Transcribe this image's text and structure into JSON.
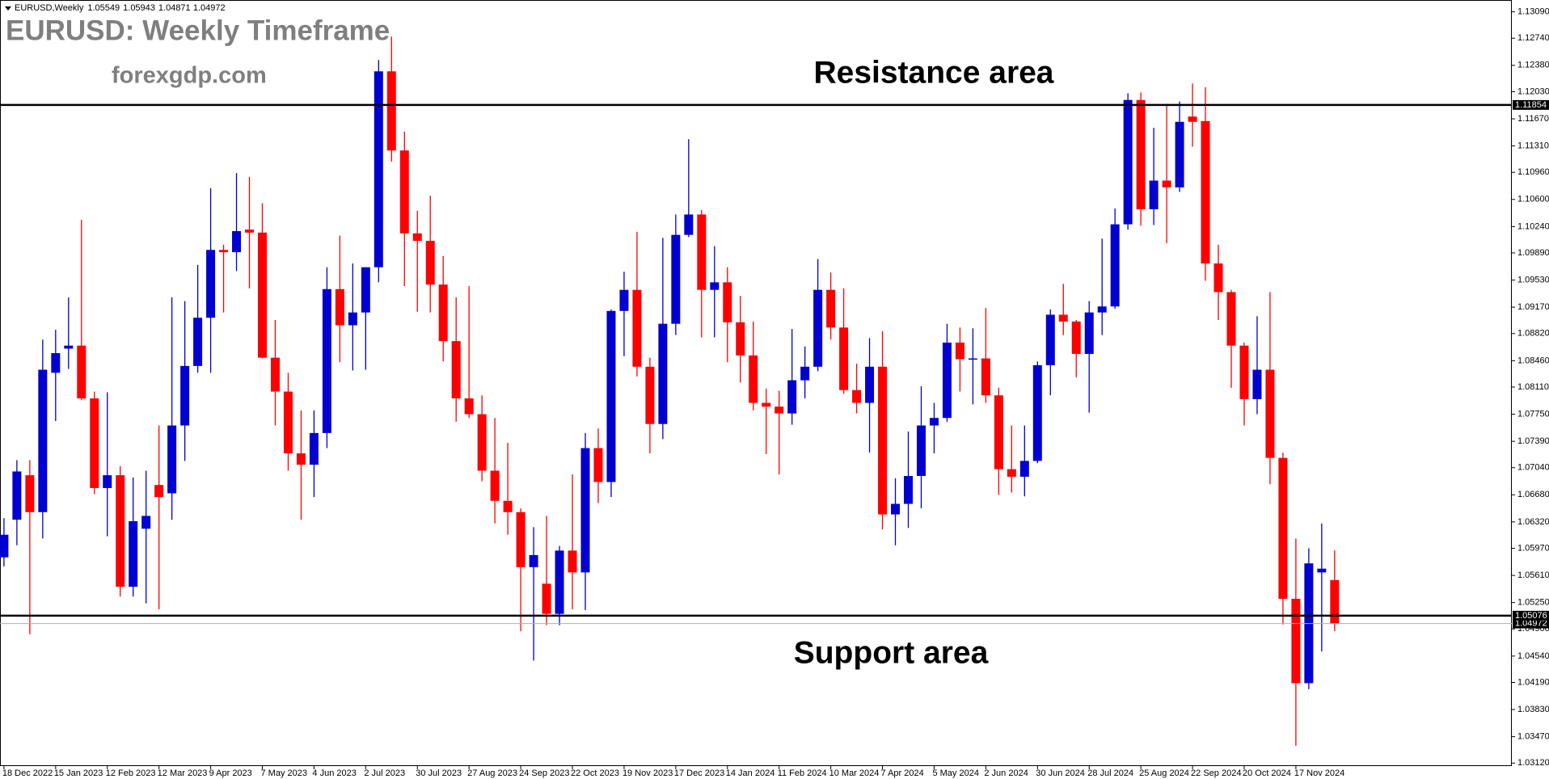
{
  "chart_data": {
    "type": "candlestick",
    "symbol": "EURUSD,Weekly",
    "title": "EURUSD: Weekly Timeframe",
    "subtitle": "forexgdp.com",
    "annotations": [
      "Resistance area",
      "Support area"
    ],
    "up_color": "#0000d0",
    "down_color": "#ff0000",
    "categories": [
      "18 Dec 2022",
      null,
      null,
      null,
      "15 Jan 2023",
      null,
      null,
      null,
      "12 Feb 2023",
      null,
      null,
      null,
      "12 Mar 2023",
      null,
      null,
      null,
      "9 Apr 2023",
      null,
      null,
      null,
      "7 May 2023",
      null,
      null,
      null,
      "4 Jun 2023",
      null,
      null,
      null,
      "2 Jul 2023",
      null,
      null,
      null,
      "30 Jul 2023",
      null,
      null,
      null,
      "27 Aug 2023",
      null,
      null,
      null,
      "24 Sep 2023",
      null,
      null,
      null,
      "22 Oct 2023",
      null,
      null,
      null,
      "19 Nov 2023",
      null,
      null,
      null,
      "17 Dec 2023",
      null,
      null,
      null,
      "14 Jan 2024",
      null,
      null,
      null,
      "11 Feb 2024",
      null,
      null,
      null,
      "10 Mar 2024",
      null,
      null,
      null,
      "7 Apr 2024",
      null,
      null,
      null,
      "5 May 2024",
      null,
      null,
      null,
      "2 Jun 2024",
      null,
      null,
      null,
      "30 Jun 2024",
      null,
      null,
      null,
      "28 Jul 2024",
      null,
      null,
      null,
      "25 Aug 2024",
      null,
      null,
      null,
      "22 Sep 2024",
      null,
      null,
      null,
      "20 Oct 2024",
      null,
      null,
      null,
      "17 Nov 2024",
      null,
      null,
      null
    ],
    "open": [
      1.0585,
      1.0635,
      1.0694,
      1.0645,
      1.083,
      1.0862,
      1.0866,
      1.0796,
      1.0677,
      1.0694,
      1.0546,
      1.0623,
      1.0681,
      1.067,
      1.076,
      1.0839,
      1.0903,
      1.0993,
      1.099,
      1.102,
      1.1016,
      1.085,
      1.0805,
      1.0723,
      1.0708,
      1.075,
      1.0941,
      1.0893,
      1.091,
      1.097,
      1.123,
      1.1125,
      1.1015,
      1.1005,
      1.0947,
      1.0872,
      1.0796,
      1.0775,
      1.07,
      1.066,
      1.0645,
      1.0572,
      1.055,
      1.051,
      1.0594,
      1.0565,
      1.073,
      1.0685,
      1.0912,
      1.094,
      1.0838,
      1.0762,
      1.0895,
      1.1013,
      1.104,
      1.094,
      1.095,
      1.0897,
      1.0853,
      1.079,
      1.0785,
      1.0776,
      1.082,
      1.0838,
      1.094,
      1.089,
      1.0807,
      1.079,
      1.0838,
      1.0642,
      1.0656,
      1.0693,
      1.076,
      1.077,
      1.087,
      1.0848,
      1.0849,
      1.08,
      1.0702,
      1.0692,
      1.0713,
      1.084,
      1.0907,
      1.0898,
      1.0855,
      1.091,
      1.0918,
      1.1027,
      1.1192,
      1.1047,
      1.1085,
      1.1076,
      1.117,
      1.1164,
      1.0975,
      1.0937,
      1.0866,
      1.0795,
      1.0834,
      1.0717,
      1.053,
      1.0418,
      1.0565,
      1.05549
    ],
    "high": [
      1.0637,
      1.0714,
      1.0714,
      1.0874,
      1.0887,
      1.093,
      1.1033,
      1.0805,
      1.0804,
      1.0706,
      1.0691,
      1.07,
      1.076,
      1.093,
      1.0925,
      1.0973,
      1.1075,
      1.1,
      1.1095,
      1.109,
      1.1055,
      1.09,
      1.083,
      1.078,
      1.078,
      1.097,
      1.1012,
      1.0975,
      1.097,
      1.1245,
      1.1276,
      1.115,
      1.1045,
      1.1065,
      1.0985,
      1.093,
      1.0945,
      1.08,
      1.077,
      1.0737,
      1.065,
      1.0625,
      1.064,
      1.06,
      1.0695,
      1.075,
      1.0756,
      1.0914,
      1.0964,
      1.1017,
      1.085,
      1.1009,
      1.104,
      1.114,
      1.1046,
      1.0998,
      1.097,
      1.0932,
      1.0898,
      1.0809,
      1.0806,
      1.0888,
      1.0865,
      1.0981,
      1.0963,
      1.0942,
      1.0842,
      1.0876,
      1.0885,
      1.069,
      1.0752,
      1.0812,
      1.079,
      1.0895,
      1.089,
      1.0889,
      1.0916,
      1.081,
      1.076,
      1.076,
      1.0845,
      1.0914,
      1.0948,
      1.09,
      1.0925,
      1.1008,
      1.1048,
      1.1201,
      1.1202,
      1.1155,
      1.1187,
      1.119,
      1.1214,
      1.1209,
      1.1,
      1.094,
      1.087,
      1.0905,
      1.0937,
      1.0724,
      1.061,
      1.0597,
      1.063,
      1.05943
    ],
    "low": [
      1.0573,
      1.0601,
      1.0483,
      1.061,
      1.0766,
      1.0835,
      1.0794,
      1.0669,
      1.0613,
      1.0533,
      1.0533,
      1.0524,
      1.0516,
      1.0635,
      1.0713,
      1.083,
      1.083,
      1.091,
      1.0965,
      1.0942,
      1.0849,
      1.076,
      1.07,
      1.0635,
      1.0665,
      1.073,
      1.0844,
      1.0833,
      1.0834,
      1.095,
      1.111,
      1.0945,
      1.0911,
      1.091,
      1.0845,
      1.0765,
      1.077,
      1.0686,
      1.063,
      1.0615,
      1.0487,
      1.0448,
      1.0495,
      1.0495,
      1.0516,
      1.0515,
      1.0657,
      1.0665,
      1.0852,
      1.0825,
      1.0723,
      1.0742,
      1.088,
      1.101,
      1.0877,
      1.0877,
      1.0844,
      1.0817,
      1.078,
      1.0722,
      1.0695,
      1.0761,
      1.0796,
      1.0832,
      1.0874,
      1.0802,
      1.0776,
      1.0724,
      1.0622,
      1.0601,
      1.0624,
      1.065,
      1.0723,
      1.0765,
      1.0805,
      1.0788,
      1.079,
      1.0668,
      1.0671,
      1.0666,
      1.071,
      1.08,
      1.088,
      1.0824,
      1.0777,
      1.088,
      1.0915,
      1.102,
      1.1025,
      1.1026,
      1.1002,
      1.107,
      1.113,
      1.0952,
      1.09,
      1.081,
      1.076,
      1.0775,
      1.0682,
      1.0496,
      1.0335,
      1.041,
      1.046,
      1.04871
    ],
    "close": [
      1.0615,
      1.0699,
      1.0645,
      1.0834,
      1.0856,
      1.0866,
      1.0796,
      1.0677,
      1.0694,
      1.0546,
      1.0633,
      1.064,
      1.0665,
      1.076,
      1.0839,
      1.0903,
      1.0993,
      1.099,
      1.1018,
      1.1016,
      1.085,
      1.0805,
      1.0723,
      1.0708,
      1.075,
      1.0941,
      1.0893,
      1.091,
      1.097,
      1.123,
      1.1125,
      1.1015,
      1.1005,
      1.0947,
      1.0872,
      1.0796,
      1.0775,
      1.07,
      1.066,
      1.0645,
      1.0572,
      1.0588,
      1.051,
      1.0594,
      1.0565,
      1.073,
      1.0685,
      1.0912,
      1.094,
      1.0838,
      1.0762,
      1.0895,
      1.1013,
      1.104,
      1.094,
      1.095,
      1.0897,
      1.0853,
      1.079,
      1.0785,
      1.0776,
      1.082,
      1.0838,
      1.094,
      1.089,
      1.0807,
      1.079,
      1.0838,
      1.0642,
      1.0656,
      1.0693,
      1.076,
      1.077,
      1.087,
      1.0848,
      1.0849,
      1.08,
      1.0702,
      1.0692,
      1.0713,
      1.084,
      1.0907,
      1.0898,
      1.0855,
      1.091,
      1.0918,
      1.1027,
      1.1192,
      1.1047,
      1.1085,
      1.1076,
      1.1163,
      1.1163,
      1.0975,
      1.0937,
      1.0866,
      1.0795,
      1.0834,
      1.0717,
      1.053,
      1.0418,
      1.0577,
      1.057,
      1.04972
    ],
    "levels": [
      {
        "value": 1.11854,
        "label": "1.11854"
      },
      {
        "value": 1.05076,
        "label": "1.05076"
      }
    ],
    "ylim": [
      1.0308,
      1.1322
    ],
    "yticks": [
      {
        "value": 1.1309,
        "label": "1.13090"
      },
      {
        "value": 1.1274,
        "label": "1.12740"
      },
      {
        "value": 1.1238,
        "label": "1.12380"
      },
      {
        "value": 1.1203,
        "label": "1.12030"
      },
      {
        "value": 1.1167,
        "label": "1.11670"
      },
      {
        "value": 1.1131,
        "label": "1.11310"
      },
      {
        "value": 1.1096,
        "label": "1.10960"
      },
      {
        "value": 1.106,
        "label": "1.10600"
      },
      {
        "value": 1.1024,
        "label": "1.10240"
      },
      {
        "value": 1.0989,
        "label": "1.09890"
      },
      {
        "value": 1.0953,
        "label": "1.09530"
      },
      {
        "value": 1.0917,
        "label": "1.09170"
      },
      {
        "value": 1.0882,
        "label": "1.08820"
      },
      {
        "value": 1.0846,
        "label": "1.08460"
      },
      {
        "value": 1.0811,
        "label": "1.08110"
      },
      {
        "value": 1.0775,
        "label": "1.07750"
      },
      {
        "value": 1.0739,
        "label": "1.07390"
      },
      {
        "value": 1.0704,
        "label": "1.07040"
      },
      {
        "value": 1.0668,
        "label": "1.06680"
      },
      {
        "value": 1.0632,
        "label": "1.06320"
      },
      {
        "value": 1.0597,
        "label": "1.05970"
      },
      {
        "value": 1.0561,
        "label": "1.05610"
      },
      {
        "value": 1.0525,
        "label": "1.05250"
      },
      {
        "value": 1.049,
        "label": "1.04900"
      },
      {
        "value": 1.0454,
        "label": "1.04540"
      },
      {
        "value": 1.0419,
        "label": "1.04190"
      },
      {
        "value": 1.0383,
        "label": "1.03830"
      },
      {
        "value": 1.0347,
        "label": "1.03470"
      },
      {
        "value": 1.0312,
        "label": "1.03120"
      }
    ]
  }
}
